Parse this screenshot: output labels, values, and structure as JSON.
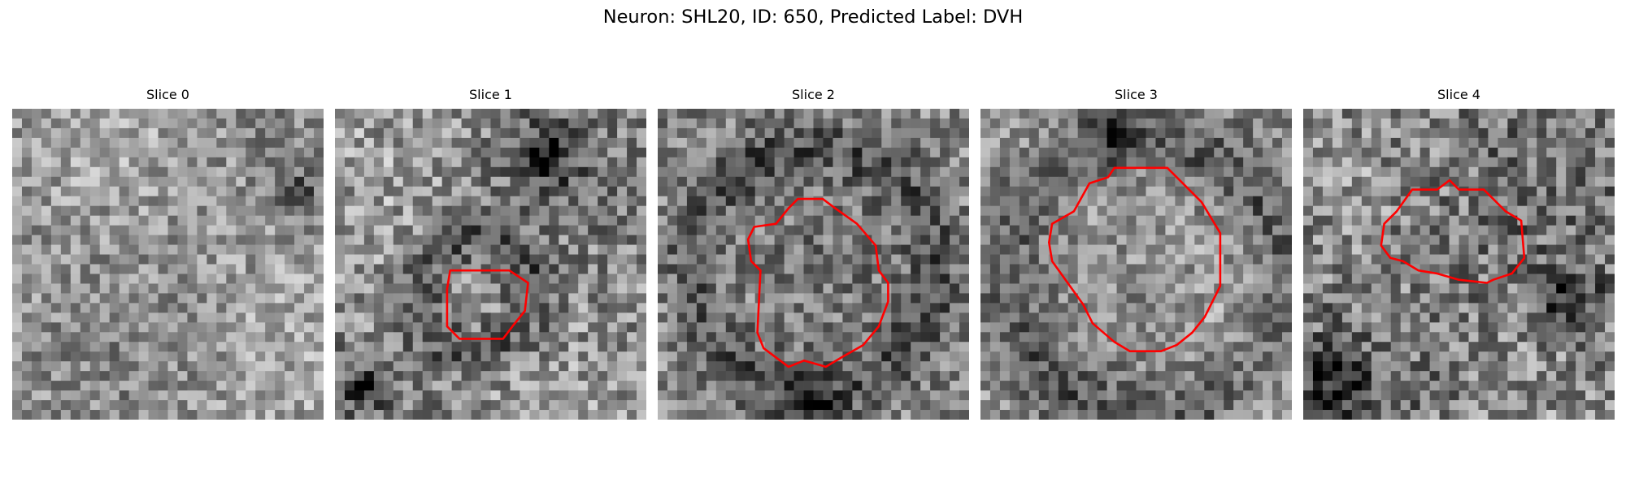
{
  "figure": {
    "suptitle": "Neuron: SHL20, ID: 650, Predicted Label: DVH"
  },
  "panels": [
    {
      "title": "Slice 0",
      "has_contour": false
    },
    {
      "title": "Slice 1",
      "has_contour": true
    },
    {
      "title": "Slice 2",
      "has_contour": true
    },
    {
      "title": "Slice 3",
      "has_contour": true
    },
    {
      "title": "Slice 4",
      "has_contour": true
    }
  ],
  "colors": {
    "contour": "#ff0000",
    "colormap": "gray",
    "background": "#ffffff"
  }
}
